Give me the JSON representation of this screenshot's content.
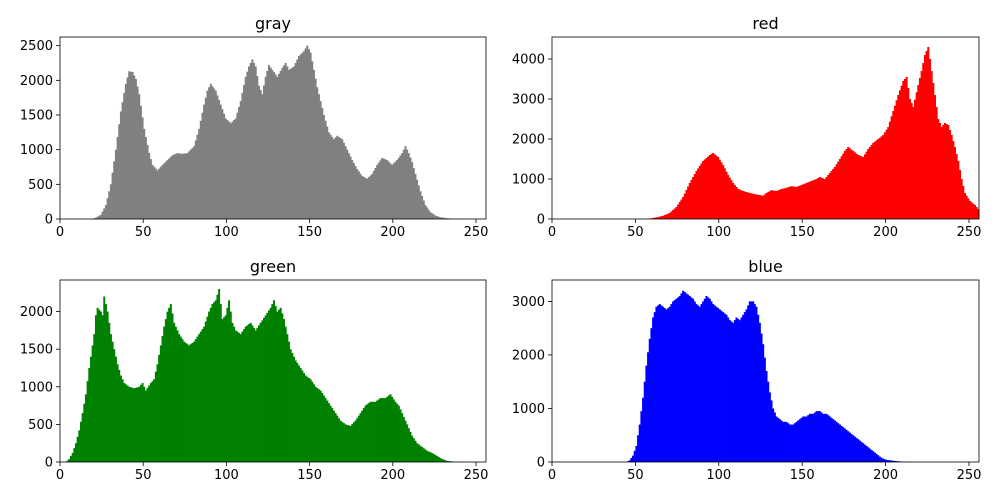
{
  "figure": {
    "panels": [
      {
        "title": "gray",
        "color": "#808080",
        "xlim": [
          0,
          256
        ],
        "xticks": [
          0,
          50,
          100,
          150,
          200,
          250
        ],
        "ylim": [
          0,
          2625
        ],
        "yticks": [
          0,
          500,
          1000,
          1500,
          2000,
          2500
        ]
      },
      {
        "title": "red",
        "color": "#ff0000",
        "xlim": [
          0,
          256
        ],
        "xticks": [
          0,
          50,
          100,
          150,
          200,
          250
        ],
        "ylim": [
          0,
          4550
        ],
        "yticks": [
          0,
          1000,
          2000,
          3000,
          4000
        ]
      },
      {
        "title": "green",
        "color": "#008000",
        "xlim": [
          0,
          256
        ],
        "xticks": [
          0,
          50,
          100,
          150,
          200,
          250
        ],
        "ylim": [
          0,
          2420
        ],
        "yticks": [
          0,
          500,
          1000,
          1500,
          2000
        ]
      },
      {
        "title": "blue",
        "color": "#0000ff",
        "xlim": [
          0,
          256
        ],
        "xticks": [
          0,
          50,
          100,
          150,
          200,
          250
        ],
        "ylim": [
          0,
          3400
        ],
        "yticks": [
          0,
          1000,
          2000,
          3000
        ]
      }
    ]
  },
  "chart_data": [
    {
      "type": "bar",
      "title": "gray",
      "xlabel": "",
      "ylabel": "",
      "bin_width": 1,
      "xlim": [
        0,
        256
      ],
      "ylim": [
        0,
        2625
      ],
      "grid": false,
      "anchors": [
        [
          0,
          0
        ],
        [
          19,
          0
        ],
        [
          21,
          20
        ],
        [
          24,
          60
        ],
        [
          27,
          200
        ],
        [
          30,
          500
        ],
        [
          33,
          1000
        ],
        [
          36,
          1550
        ],
        [
          39,
          1950
        ],
        [
          41,
          2130
        ],
        [
          43,
          2120
        ],
        [
          45,
          2020
        ],
        [
          47,
          1800
        ],
        [
          50,
          1300
        ],
        [
          53,
          950
        ],
        [
          55,
          780
        ],
        [
          58,
          700
        ],
        [
          61,
          780
        ],
        [
          64,
          850
        ],
        [
          67,
          920
        ],
        [
          70,
          950
        ],
        [
          73,
          940
        ],
        [
          76,
          950
        ],
        [
          80,
          1050
        ],
        [
          83,
          1300
        ],
        [
          86,
          1650
        ],
        [
          88,
          1850
        ],
        [
          90,
          1950
        ],
        [
          93,
          1850
        ],
        [
          96,
          1650
        ],
        [
          99,
          1450
        ],
        [
          102,
          1380
        ],
        [
          105,
          1450
        ],
        [
          108,
          1700
        ],
        [
          111,
          2050
        ],
        [
          113,
          2200
        ],
        [
          115,
          2300
        ],
        [
          117,
          2200
        ],
        [
          119,
          1920
        ],
        [
          121,
          1800
        ],
        [
          123,
          2050
        ],
        [
          125,
          2220
        ],
        [
          127,
          2150
        ],
        [
          130,
          2050
        ],
        [
          133,
          2180
        ],
        [
          135,
          2250
        ],
        [
          137,
          2150
        ],
        [
          140,
          2200
        ],
        [
          143,
          2350
        ],
        [
          146,
          2420
        ],
        [
          148,
          2500
        ],
        [
          150,
          2400
        ],
        [
          152,
          2150
        ],
        [
          154,
          1900
        ],
        [
          156,
          1700
        ],
        [
          158,
          1500
        ],
        [
          161,
          1250
        ],
        [
          164,
          1150
        ],
        [
          166,
          1200
        ],
        [
          169,
          1150
        ],
        [
          172,
          1000
        ],
        [
          175,
          850
        ],
        [
          178,
          720
        ],
        [
          181,
          620
        ],
        [
          184,
          580
        ],
        [
          187,
          650
        ],
        [
          190,
          780
        ],
        [
          193,
          880
        ],
        [
          196,
          850
        ],
        [
          199,
          780
        ],
        [
          202,
          850
        ],
        [
          205,
          950
        ],
        [
          207,
          1050
        ],
        [
          209,
          950
        ],
        [
          211,
          820
        ],
        [
          213,
          650
        ],
        [
          216,
          400
        ],
        [
          219,
          200
        ],
        [
          222,
          100
        ],
        [
          225,
          50
        ],
        [
          228,
          25
        ],
        [
          232,
          10
        ],
        [
          236,
          5
        ],
        [
          240,
          0
        ],
        [
          255,
          0
        ]
      ]
    },
    {
      "type": "bar",
      "title": "red",
      "xlabel": "",
      "ylabel": "",
      "bin_width": 1,
      "xlim": [
        0,
        256
      ],
      "ylim": [
        0,
        4550
      ],
      "grid": false,
      "anchors": [
        [
          0,
          0
        ],
        [
          55,
          0
        ],
        [
          58,
          10
        ],
        [
          62,
          40
        ],
        [
          66,
          80
        ],
        [
          70,
          150
        ],
        [
          74,
          300
        ],
        [
          78,
          550
        ],
        [
          82,
          900
        ],
        [
          86,
          1200
        ],
        [
          90,
          1450
        ],
        [
          94,
          1600
        ],
        [
          96,
          1650
        ],
        [
          99,
          1550
        ],
        [
          102,
          1350
        ],
        [
          105,
          1100
        ],
        [
          108,
          900
        ],
        [
          111,
          750
        ],
        [
          114,
          700
        ],
        [
          118,
          650
        ],
        [
          121,
          620
        ],
        [
          124,
          600
        ],
        [
          126,
          580
        ],
        [
          128,
          650
        ],
        [
          131,
          720
        ],
        [
          134,
          700
        ],
        [
          137,
          750
        ],
        [
          140,
          780
        ],
        [
          143,
          820
        ],
        [
          146,
          800
        ],
        [
          149,
          850
        ],
        [
          152,
          900
        ],
        [
          155,
          950
        ],
        [
          158,
          1000
        ],
        [
          160,
          1050
        ],
        [
          163,
          1000
        ],
        [
          166,
          1150
        ],
        [
          169,
          1300
        ],
        [
          172,
          1500
        ],
        [
          175,
          1700
        ],
        [
          177,
          1800
        ],
        [
          180,
          1700
        ],
        [
          183,
          1600
        ],
        [
          186,
          1550
        ],
        [
          189,
          1750
        ],
        [
          192,
          1900
        ],
        [
          195,
          2000
        ],
        [
          198,
          2100
        ],
        [
          201,
          2300
        ],
        [
          204,
          2700
        ],
        [
          207,
          3100
        ],
        [
          210,
          3450
        ],
        [
          212,
          3550
        ],
        [
          214,
          3000
        ],
        [
          216,
          2800
        ],
        [
          219,
          3350
        ],
        [
          221,
          3700
        ],
        [
          223,
          4100
        ],
        [
          225,
          4300
        ],
        [
          227,
          3700
        ],
        [
          229,
          3100
        ],
        [
          231,
          2500
        ],
        [
          233,
          2300
        ],
        [
          235,
          2400
        ],
        [
          237,
          2350
        ],
        [
          239,
          2100
        ],
        [
          241,
          1800
        ],
        [
          243,
          1450
        ],
        [
          245,
          1000
        ],
        [
          247,
          650
        ],
        [
          250,
          450
        ],
        [
          253,
          350
        ],
        [
          255,
          250
        ]
      ]
    },
    {
      "type": "bar",
      "title": "green",
      "xlabel": "",
      "ylabel": "",
      "bin_width": 1,
      "xlim": [
        0,
        256
      ],
      "ylim": [
        0,
        2420
      ],
      "grid": false,
      "anchors": [
        [
          0,
          0
        ],
        [
          3,
          0
        ],
        [
          5,
          40
        ],
        [
          7,
          120
        ],
        [
          9,
          250
        ],
        [
          11,
          420
        ],
        [
          13,
          650
        ],
        [
          15,
          900
        ],
        [
          17,
          1250
        ],
        [
          19,
          1550
        ],
        [
          20,
          1700
        ],
        [
          21,
          1950
        ],
        [
          22,
          2050
        ],
        [
          24,
          2000
        ],
        [
          25,
          1950
        ],
        [
          26,
          2200
        ],
        [
          28,
          2000
        ],
        [
          30,
          1700
        ],
        [
          32,
          1500
        ],
        [
          34,
          1300
        ],
        [
          36,
          1150
        ],
        [
          38,
          1050
        ],
        [
          41,
          1000
        ],
        [
          44,
          980
        ],
        [
          47,
          1000
        ],
        [
          49,
          1050
        ],
        [
          51,
          950
        ],
        [
          54,
          1050
        ],
        [
          56,
          1100
        ],
        [
          58,
          1300
        ],
        [
          60,
          1550
        ],
        [
          62,
          1800
        ],
        [
          64,
          2000
        ],
        [
          66,
          2100
        ],
        [
          68,
          1850
        ],
        [
          71,
          1700
        ],
        [
          74,
          1600
        ],
        [
          77,
          1550
        ],
        [
          80,
          1600
        ],
        [
          83,
          1700
        ],
        [
          86,
          1800
        ],
        [
          89,
          2000
        ],
        [
          91,
          2100
        ],
        [
          93,
          2150
        ],
        [
          95,
          2300
        ],
        [
          97,
          1900
        ],
        [
          99,
          1950
        ],
        [
          101,
          2150
        ],
        [
          103,
          1850
        ],
        [
          105,
          1750
        ],
        [
          108,
          1700
        ],
        [
          111,
          1800
        ],
        [
          114,
          1850
        ],
        [
          117,
          1750
        ],
        [
          120,
          1850
        ],
        [
          123,
          1950
        ],
        [
          126,
          2050
        ],
        [
          128,
          2150
        ],
        [
          130,
          2000
        ],
        [
          132,
          2050
        ],
        [
          134,
          1900
        ],
        [
          136,
          1700
        ],
        [
          138,
          1500
        ],
        [
          141,
          1350
        ],
        [
          144,
          1250
        ],
        [
          147,
          1150
        ],
        [
          150,
          1100
        ],
        [
          153,
          1000
        ],
        [
          156,
          950
        ],
        [
          159,
          850
        ],
        [
          162,
          750
        ],
        [
          165,
          650
        ],
        [
          168,
          550
        ],
        [
          171,
          500
        ],
        [
          174,
          480
        ],
        [
          177,
          550
        ],
        [
          180,
          650
        ],
        [
          183,
          750
        ],
        [
          186,
          800
        ],
        [
          189,
          800
        ],
        [
          192,
          850
        ],
        [
          195,
          850
        ],
        [
          198,
          900
        ],
        [
          201,
          800
        ],
        [
          203,
          750
        ],
        [
          205,
          650
        ],
        [
          208,
          500
        ],
        [
          211,
          350
        ],
        [
          214,
          250
        ],
        [
          217,
          200
        ],
        [
          220,
          150
        ],
        [
          223,
          120
        ],
        [
          226,
          80
        ],
        [
          229,
          40
        ],
        [
          232,
          15
        ],
        [
          236,
          5
        ],
        [
          240,
          0
        ],
        [
          255,
          0
        ]
      ]
    },
    {
      "type": "bar",
      "title": "blue",
      "xlabel": "",
      "ylabel": "",
      "bin_width": 1,
      "xlim": [
        0,
        256
      ],
      "ylim": [
        0,
        3400
      ],
      "grid": false,
      "anchors": [
        [
          0,
          0
        ],
        [
          44,
          0
        ],
        [
          46,
          30
        ],
        [
          48,
          120
        ],
        [
          50,
          300
        ],
        [
          52,
          700
        ],
        [
          54,
          1200
        ],
        [
          56,
          1800
        ],
        [
          58,
          2300
        ],
        [
          60,
          2700
        ],
        [
          62,
          2900
        ],
        [
          64,
          2950
        ],
        [
          66,
          2900
        ],
        [
          68,
          2850
        ],
        [
          70,
          2900
        ],
        [
          72,
          3000
        ],
        [
          74,
          3050
        ],
        [
          76,
          3100
        ],
        [
          78,
          3200
        ],
        [
          80,
          3150
        ],
        [
          82,
          3100
        ],
        [
          84,
          3050
        ],
        [
          86,
          2950
        ],
        [
          88,
          2900
        ],
        [
          90,
          3000
        ],
        [
          92,
          3100
        ],
        [
          94,
          3050
        ],
        [
          96,
          2950
        ],
        [
          98,
          2900
        ],
        [
          100,
          2850
        ],
        [
          102,
          2800
        ],
        [
          104,
          2750
        ],
        [
          106,
          2650
        ],
        [
          108,
          2600
        ],
        [
          110,
          2700
        ],
        [
          112,
          2650
        ],
        [
          114,
          2750
        ],
        [
          116,
          2850
        ],
        [
          118,
          3000
        ],
        [
          120,
          3000
        ],
        [
          122,
          2900
        ],
        [
          124,
          2600
        ],
        [
          126,
          2200
        ],
        [
          128,
          1700
        ],
        [
          130,
          1300
        ],
        [
          132,
          1000
        ],
        [
          134,
          850
        ],
        [
          136,
          800
        ],
        [
          138,
          750
        ],
        [
          140,
          750
        ],
        [
          142,
          700
        ],
        [
          144,
          700
        ],
        [
          146,
          750
        ],
        [
          148,
          800
        ],
        [
          150,
          850
        ],
        [
          152,
          850
        ],
        [
          154,
          900
        ],
        [
          156,
          900
        ],
        [
          158,
          950
        ],
        [
          160,
          950
        ],
        [
          162,
          900
        ],
        [
          164,
          900
        ],
        [
          166,
          850
        ],
        [
          168,
          800
        ],
        [
          170,
          750
        ],
        [
          172,
          700
        ],
        [
          174,
          650
        ],
        [
          176,
          600
        ],
        [
          178,
          550
        ],
        [
          180,
          500
        ],
        [
          182,
          450
        ],
        [
          184,
          400
        ],
        [
          186,
          350
        ],
        [
          188,
          300
        ],
        [
          190,
          250
        ],
        [
          192,
          200
        ],
        [
          194,
          150
        ],
        [
          196,
          100
        ],
        [
          198,
          60
        ],
        [
          200,
          40
        ],
        [
          205,
          20
        ],
        [
          210,
          5
        ],
        [
          215,
          0
        ],
        [
          255,
          0
        ]
      ]
    }
  ]
}
